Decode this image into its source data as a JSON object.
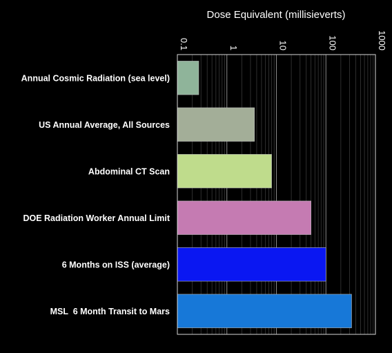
{
  "chart_data": {
    "type": "bar",
    "orientation": "horizontal",
    "xlabel": "Dose Equivalent (millisieverts)",
    "x_scale": "log",
    "xlim": [
      0.1,
      1000
    ],
    "x_ticks": [
      "0.1",
      "1",
      "10",
      "100",
      "1000"
    ],
    "grid": true,
    "categories": [
      "Annual Cosmic Radiation (sea level)",
      "US Annual Average, All Sources",
      "Abdominal CT Scan",
      "DOE Radiation Worker Annual Limit",
      "6 Months on ISS (average)",
      "MSL  6 Month Transit to Mars"
    ],
    "values": [
      0.27,
      3.6,
      8,
      50,
      100,
      330
    ],
    "colors": [
      "#8fb49a",
      "#a3ae98",
      "#bfdc8c",
      "#c57bb2",
      "#0a17f2",
      "#1778d8"
    ]
  }
}
